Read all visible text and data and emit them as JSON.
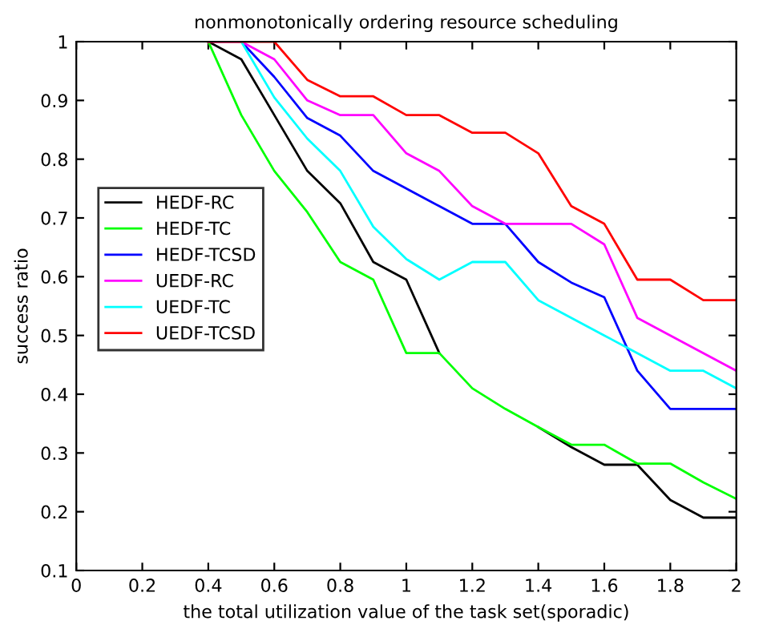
{
  "chart_data": {
    "type": "line",
    "title": "nonmonotonically ordering resource scheduling",
    "xlabel": "the total utilization value of the task set(sporadic)",
    "ylabel": "success ratio",
    "x": [
      0.4,
      0.5,
      0.6,
      0.7,
      0.8,
      0.9,
      1.0,
      1.1,
      1.2,
      1.3,
      1.4,
      1.5,
      1.6,
      1.7,
      1.8,
      1.9,
      2.0
    ],
    "series": [
      {
        "name": "HEDF-RC",
        "color": "#000000",
        "values": [
          1.0,
          0.97,
          0.875,
          0.78,
          0.725,
          0.625,
          0.595,
          0.47,
          null,
          null,
          0.344,
          0.31,
          0.28,
          0.28,
          0.22,
          0.19,
          0.19
        ]
      },
      {
        "name": "HEDF-TC",
        "color": "#00ff00",
        "values": [
          1.0,
          0.875,
          0.78,
          0.71,
          0.625,
          0.595,
          0.47,
          0.47,
          0.41,
          0.375,
          0.344,
          0.314,
          0.314,
          0.282,
          0.282,
          0.25,
          0.222
        ]
      },
      {
        "name": "HEDF-TCSD",
        "color": "#0000ff",
        "values": [
          null,
          1.0,
          0.94,
          0.87,
          0.84,
          0.78,
          0.75,
          0.72,
          0.69,
          0.69,
          0.625,
          0.59,
          0.565,
          0.44,
          0.375,
          0.375,
          0.375
        ]
      },
      {
        "name": "UEDF-RC",
        "color": "#ff00ff",
        "values": [
          1.0,
          1.0,
          0.97,
          0.9,
          0.875,
          0.875,
          0.81,
          0.78,
          0.72,
          0.69,
          0.69,
          0.69,
          0.655,
          0.53,
          0.5,
          0.47,
          0.44
        ]
      },
      {
        "name": "UEDF-TC",
        "color": "#00ffff",
        "values": [
          null,
          1.0,
          0.905,
          0.835,
          0.78,
          0.685,
          0.63,
          0.595,
          0.625,
          0.625,
          0.56,
          0.53,
          0.5,
          0.47,
          0.44,
          0.44,
          0.41
        ]
      },
      {
        "name": "UEDF-TCSD",
        "color": "#ff0000",
        "values": [
          1.0,
          1.0,
          1.0,
          0.935,
          0.907,
          0.907,
          0.875,
          0.875,
          0.845,
          0.845,
          0.81,
          0.72,
          0.69,
          0.595,
          0.595,
          0.56,
          0.56
        ]
      }
    ],
    "xlim": [
      0,
      2
    ],
    "ylim": [
      0.1,
      1
    ],
    "xticks": [
      0,
      0.2,
      0.4,
      0.6,
      0.8,
      1,
      1.2,
      1.4,
      1.6,
      1.8,
      2
    ],
    "yticks": [
      0.1,
      0.2,
      0.3,
      0.4,
      0.5,
      0.6,
      0.7,
      0.8,
      0.9,
      1
    ],
    "legend": "left",
    "grid": false
  }
}
